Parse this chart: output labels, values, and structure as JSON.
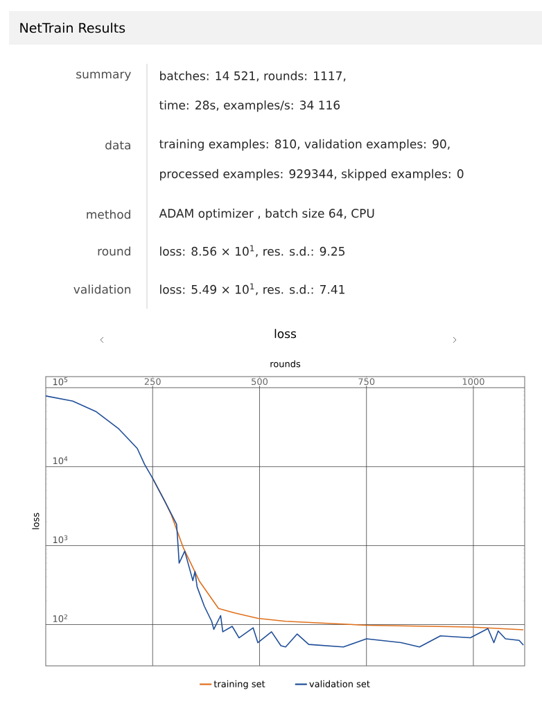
{
  "chart_data": {
    "type": "line",
    "title": "loss",
    "xlabel": "rounds",
    "ylabel": "loss",
    "log": "y",
    "grid": true,
    "legend": "bottom",
    "annotations": [
      "NetTrain Results",
      "summary",
      "batches: 14 521, rounds: 1117,",
      "time: 28s, examples/s: 34 116",
      "data",
      "training examples: 810, validation examples: 90,",
      "processed examples: 929344, skipped examples: 0",
      "method",
      "ADAM optimizer , batch size 64, CPU",
      "round",
      "loss: 8.56 × 10$^{1}$, res. s.d.: 9.25",
      "validation",
      "loss: 5.49 × 10$^{1}$, res. s.d.: 7.41"
    ],
    "xlim": [
      0,
      1120
    ],
    "ylim": [
      30,
      138000
    ],
    "xticks": [
      250,
      500,
      750,
      1000
    ],
    "yticks": [
      {
        "value": 100,
        "label": "10$^{2}$"
      },
      {
        "value": 1000,
        "label": "10$^{3}$"
      },
      {
        "value": 10000,
        "label": "10$^{4}$"
      },
      {
        "value": 100000,
        "label": "10$^{5}$"
      }
    ],
    "series": [
      {
        "name": "training set",
        "color": "#e0701c",
        "x": [
          250,
          279,
          293,
          322,
          360,
          404,
          442,
          496,
          561,
          750,
          993,
          1117
        ],
        "values": [
          7100,
          3600,
          2500,
          930,
          350,
          160,
          140,
          120,
          110,
          98,
          93,
          86
        ]
      },
      {
        "name": "validation set",
        "color": "#1f4e99",
        "x": [
          0,
          63,
          117,
          171,
          214,
          231,
          250,
          279,
          306,
          309,
          312,
          325,
          344,
          349,
          354,
          371,
          388,
          393,
          409,
          414,
          436,
          452,
          485,
          496,
          528,
          550,
          561,
          588,
          615,
          696,
          750,
          831,
          874,
          923,
          993,
          1034,
          1048,
          1058,
          1075,
          1107,
          1117
        ],
        "values": [
          78500,
          67600,
          50000,
          30000,
          17000,
          10700,
          7100,
          3600,
          1860,
          1070,
          600,
          850,
          360,
          470,
          300,
          170,
          110,
          87,
          130,
          81,
          95,
          68,
          91,
          59,
          81,
          54,
          52,
          76,
          56,
          52,
          66,
          59,
          52,
          72,
          68,
          89,
          59,
          83,
          66,
          63,
          55
        ]
      }
    ]
  }
}
